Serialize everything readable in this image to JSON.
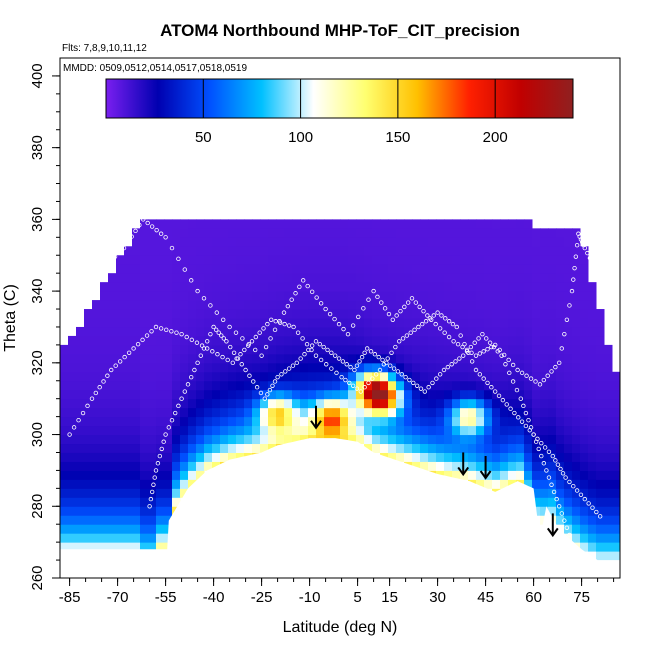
{
  "chart_data": {
    "type": "heatmap",
    "title": "ATOM4 Northbound MHP-ToF_CIT_precision",
    "flights_note": "Flts: 7,8,9,10,11,12",
    "dates_note": "MMDD: 0509,0512,0514,0517,0518,0519",
    "xlabel": "Latitude (deg N)",
    "ylabel": "Theta (C)",
    "xlim": [
      -88,
      87
    ],
    "ylim": [
      260,
      405
    ],
    "x_ticks": [
      -85,
      -70,
      -55,
      -40,
      -25,
      -10,
      5,
      15,
      30,
      45,
      60,
      75
    ],
    "y_ticks": [
      260,
      280,
      300,
      320,
      340,
      360,
      380,
      400
    ],
    "colorbar": {
      "range": [
        0,
        240
      ],
      "ticks": [
        50,
        100,
        150,
        200
      ],
      "colors": [
        "#7a1ff0",
        "#0000b0",
        "#0050ff",
        "#00c0ff",
        "#ffffff",
        "#ffff70",
        "#ffc000",
        "#ff2000",
        "#c00000",
        "#902020"
      ]
    },
    "terrain_color": "#ffffff",
    "hotspots": [
      {
        "lat": 10,
        "theta": 313,
        "value": 190
      },
      {
        "lat": 13,
        "theta": 310,
        "value": 160
      },
      {
        "lat": -3,
        "theta": 305,
        "value": 140
      },
      {
        "lat": 40,
        "theta": 305,
        "value": 130
      },
      {
        "lat": -20,
        "theta": 306,
        "value": 125
      }
    ],
    "arrows": [
      {
        "lat": -8,
        "theta": 303
      },
      {
        "lat": 38,
        "theta": 290
      },
      {
        "lat": 45,
        "theta": 289
      },
      {
        "lat": 66,
        "theta": 273
      }
    ],
    "flight_tracks": [
      {
        "points": [
          [
            -88,
            326
          ],
          [
            -82,
            338
          ],
          [
            -75,
            346
          ],
          [
            -68,
            352
          ],
          [
            -62,
            360
          ],
          [
            -55,
            355
          ],
          [
            -45,
            340
          ],
          [
            -35,
            330
          ],
          [
            -25,
            322
          ],
          [
            -18,
            334
          ],
          [
            -12,
            343
          ],
          [
            -5,
            335
          ],
          [
            2,
            328
          ],
          [
            10,
            340
          ],
          [
            16,
            332
          ],
          [
            22,
            338
          ],
          [
            28,
            332
          ],
          [
            35,
            326
          ],
          [
            42,
            322
          ],
          [
            48,
            325
          ],
          [
            55,
            318
          ],
          [
            62,
            314
          ],
          [
            68,
            320
          ],
          [
            72,
            340
          ],
          [
            74,
            356
          ],
          [
            76,
            352
          ],
          [
            80,
            345
          ],
          [
            84,
            338
          ]
        ]
      },
      {
        "points": [
          [
            -60,
            280
          ],
          [
            -58,
            290
          ],
          [
            -55,
            300
          ],
          [
            -50,
            310
          ],
          [
            -45,
            320
          ],
          [
            -40,
            330
          ],
          [
            -36,
            326
          ],
          [
            -30,
            318
          ],
          [
            -24,
            310
          ],
          [
            -20,
            316
          ],
          [
            -14,
            320
          ],
          [
            -8,
            326
          ],
          [
            -2,
            322
          ],
          [
            4,
            318
          ],
          [
            8,
            324
          ],
          [
            14,
            320
          ],
          [
            20,
            316
          ],
          [
            26,
            312
          ],
          [
            32,
            318
          ],
          [
            38,
            322
          ],
          [
            44,
            328
          ],
          [
            50,
            322
          ],
          [
            56,
            310
          ],
          [
            60,
            300
          ],
          [
            64,
            290
          ],
          [
            68,
            280
          ],
          [
            72,
            270
          ],
          [
            78,
            265
          ]
        ]
      },
      {
        "points": [
          [
            -85,
            300
          ],
          [
            -78,
            310
          ],
          [
            -72,
            318
          ],
          [
            -65,
            324
          ],
          [
            -58,
            330
          ],
          [
            -50,
            328
          ],
          [
            -42,
            324
          ],
          [
            -34,
            320
          ],
          [
            -28,
            326
          ],
          [
            -22,
            332
          ],
          [
            -15,
            330
          ],
          [
            -8,
            322
          ],
          [
            0,
            316
          ],
          [
            6,
            312
          ],
          [
            12,
            318
          ],
          [
            18,
            326
          ],
          [
            24,
            330
          ],
          [
            30,
            334
          ],
          [
            36,
            330
          ],
          [
            42,
            318
          ],
          [
            48,
            312
          ],
          [
            54,
            306
          ],
          [
            60,
            300
          ],
          [
            66,
            294
          ],
          [
            70,
            288
          ],
          [
            76,
            282
          ],
          [
            82,
            276
          ]
        ]
      }
    ]
  }
}
